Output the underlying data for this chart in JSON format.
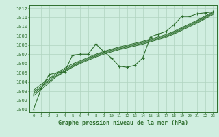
{
  "background_color": "#d0eee0",
  "grid_color": "#b0d4c0",
  "line_color": "#2d6e2d",
  "title": "Graphe pression niveau de la mer (hPa)",
  "x_ticks": [
    0,
    1,
    2,
    3,
    4,
    5,
    6,
    7,
    8,
    9,
    10,
    11,
    12,
    13,
    14,
    15,
    16,
    17,
    18,
    19,
    20,
    21,
    22,
    23
  ],
  "y_min": 1001,
  "y_max": 1012,
  "y_ticks": [
    1001,
    1002,
    1003,
    1004,
    1005,
    1006,
    1007,
    1008,
    1009,
    1010,
    1011,
    1012
  ],
  "main_data": [
    1001.0,
    1003.3,
    1004.8,
    1005.0,
    1005.1,
    1006.9,
    1007.0,
    1007.0,
    1008.1,
    1007.3,
    1006.6,
    1005.7,
    1005.6,
    1005.8,
    1006.6,
    1008.9,
    1009.2,
    1009.5,
    1010.2,
    1011.1,
    1011.1,
    1011.4,
    1011.5,
    1011.6
  ],
  "trend1": [
    1002.5,
    1003.2,
    1003.9,
    1004.6,
    1005.1,
    1005.6,
    1006.0,
    1006.35,
    1006.7,
    1007.0,
    1007.25,
    1007.5,
    1007.7,
    1007.9,
    1008.1,
    1008.35,
    1008.6,
    1008.85,
    1009.2,
    1009.6,
    1010.0,
    1010.4,
    1010.85,
    1011.3
  ],
  "trend2": [
    1002.7,
    1003.4,
    1004.05,
    1004.7,
    1005.2,
    1005.7,
    1006.1,
    1006.45,
    1006.8,
    1007.1,
    1007.35,
    1007.6,
    1007.8,
    1008.0,
    1008.2,
    1008.45,
    1008.7,
    1008.95,
    1009.3,
    1009.7,
    1010.1,
    1010.5,
    1010.95,
    1011.4
  ],
  "trend3": [
    1002.9,
    1003.55,
    1004.2,
    1004.85,
    1005.35,
    1005.8,
    1006.2,
    1006.55,
    1006.9,
    1007.2,
    1007.45,
    1007.7,
    1007.9,
    1008.1,
    1008.3,
    1008.55,
    1008.8,
    1009.05,
    1009.4,
    1009.8,
    1010.2,
    1010.6,
    1011.05,
    1011.5
  ],
  "trend4": [
    1003.1,
    1003.75,
    1004.35,
    1005.0,
    1005.5,
    1005.95,
    1006.3,
    1006.65,
    1007.0,
    1007.3,
    1007.55,
    1007.8,
    1008.0,
    1008.2,
    1008.4,
    1008.65,
    1008.9,
    1009.15,
    1009.5,
    1009.9,
    1010.3,
    1010.7,
    1011.15,
    1011.6
  ]
}
